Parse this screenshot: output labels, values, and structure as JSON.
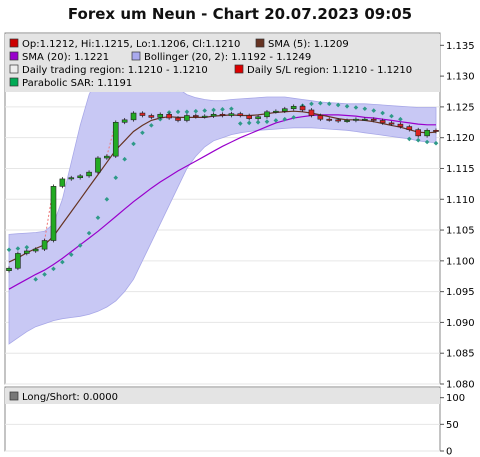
{
  "title": "Forex um Neun - Chart 20.07.2023 09:05",
  "legend": {
    "ohlc": "Op:1.1212, Hi:1.1215, Lo:1.1206, Cl:1.1210",
    "sma5": "SMA (5): 1.1209",
    "sma20": "SMA (20): 1.1221",
    "bollinger": "Bollinger (20, 2): 1.1192 - 1.1249",
    "daily_region": "Daily trading region: 1.1210 - 1.1210",
    "daily_sl": "Daily S/L region: 1.1210 - 1.1210",
    "psar": "Parabolic SAR: 1.1191"
  },
  "lower_panel": {
    "legend": "Long/Short: 0.0000",
    "ticks": [
      "100",
      "50",
      "0"
    ]
  },
  "colors": {
    "ohlc_swatch": "#cc0000",
    "sma5": "#663322",
    "sma20": "#9900cc",
    "bollinger_fill": "#c8c8f4",
    "bollinger_swatch": "#aaaaee",
    "daily_region": "#eeeeee",
    "daily_sl": "#dd0000",
    "psar": "#00aa55",
    "psar_dot": "#2e9a88",
    "up_candle": "#22aa22",
    "down_candle": "#dd2222"
  },
  "chart_data": {
    "type": "candlestick",
    "title": "Forex um Neun - Chart 20.07.2023 09:05",
    "ylim": [
      1.08,
      1.137
    ],
    "yticks": [
      "1.080",
      "1.085",
      "1.090",
      "1.095",
      "1.100",
      "1.105",
      "1.110",
      "1.115",
      "1.120",
      "1.125",
      "1.130",
      "1.135"
    ],
    "close": [
      1.0988,
      1.1012,
      1.1016,
      1.1019,
      1.1033,
      1.1121,
      1.1133,
      1.1135,
      1.1138,
      1.1144,
      1.1167,
      1.117,
      1.1225,
      1.1229,
      1.124,
      1.1236,
      1.1233,
      1.1238,
      1.1232,
      1.1228,
      1.1236,
      1.1234,
      1.1235,
      1.1238,
      1.1236,
      1.1239,
      1.1236,
      1.1231,
      1.1234,
      1.1242,
      1.1243,
      1.1247,
      1.1251,
      1.1245,
      1.1236,
      1.123,
      1.1229,
      1.1227,
      1.1228,
      1.123,
      1.123,
      1.1228,
      1.1224,
      1.1222,
      1.1218,
      1.1213,
      1.1203,
      1.1212,
      1.121
    ],
    "sma5": [
      1.0998,
      1.1005,
      1.1013,
      1.102,
      1.1026,
      1.104,
      1.106,
      1.108,
      1.11,
      1.112,
      1.114,
      1.116,
      1.118,
      1.1195,
      1.121,
      1.122,
      1.1228,
      1.1232,
      1.1234,
      1.1233,
      1.1233,
      1.1233,
      1.1233,
      1.1235,
      1.1236,
      1.1237,
      1.1236,
      1.1236,
      1.1237,
      1.1239,
      1.1241,
      1.1242,
      1.1243,
      1.1242,
      1.124,
      1.1237,
      1.1234,
      1.1231,
      1.1229,
      1.1229,
      1.1228,
      1.1226,
      1.1223,
      1.122,
      1.1217,
      1.1213,
      1.1209,
      1.1208,
      1.1209
    ],
    "sma20": [
      1.0954,
      1.0962,
      1.097,
      1.0978,
      1.0985,
      1.0994,
      1.1004,
      1.1015,
      1.1026,
      1.1037,
      1.1048,
      1.106,
      1.1072,
      1.1084,
      1.1096,
      1.1107,
      1.1118,
      1.1128,
      1.1137,
      1.1146,
      1.1154,
      1.1162,
      1.117,
      1.1178,
      1.1186,
      1.1193,
      1.12,
      1.1206,
      1.1212,
      1.1218,
      1.1224,
      1.1228,
      1.1232,
      1.1234,
      1.1236,
      1.1237,
      1.1237,
      1.1237,
      1.1236,
      1.1235,
      1.1233,
      1.1232,
      1.123,
      1.1228,
      1.1226,
      1.1224,
      1.1222,
      1.1221,
      1.1221
    ],
    "boll_upper": [
      1.1043,
      1.1044,
      1.1045,
      1.1046,
      1.1048,
      1.106,
      1.11,
      1.116,
      1.122,
      1.127,
      1.13,
      1.1315,
      1.132,
      1.1322,
      1.1322,
      1.132,
      1.1318,
      1.1312,
      1.13,
      1.128,
      1.127,
      1.1265,
      1.1262,
      1.126,
      1.126,
      1.1262,
      1.1263,
      1.1264,
      1.1265,
      1.1266,
      1.1266,
      1.1266,
      1.1264,
      1.1262,
      1.126,
      1.1258,
      1.1257,
      1.1256,
      1.1255,
      1.1255,
      1.1255,
      1.1254,
      1.1253,
      1.1252,
      1.1251,
      1.125,
      1.1249,
      1.1249,
      1.1249
    ],
    "boll_lower": [
      1.0865,
      1.0875,
      1.0885,
      1.0893,
      1.0898,
      1.0903,
      1.0906,
      1.0908,
      1.091,
      1.0913,
      1.0918,
      1.0925,
      1.0935,
      1.095,
      1.097,
      1.1,
      1.103,
      1.106,
      1.109,
      1.112,
      1.115,
      1.117,
      1.1185,
      1.1195,
      1.12,
      1.1205,
      1.1208,
      1.121,
      1.1212,
      1.1213,
      1.1214,
      1.1215,
      1.1216,
      1.1216,
      1.1216,
      1.1215,
      1.1214,
      1.1213,
      1.1212,
      1.121,
      1.1208,
      1.1206,
      1.1204,
      1.1202,
      1.12,
      1.1198,
      1.1195,
      1.1193,
      1.1192
    ],
    "psar": [
      1.1018,
      1.102,
      1.1022,
      1.097,
      1.0978,
      1.0987,
      1.0998,
      1.101,
      1.1025,
      1.1045,
      1.107,
      1.11,
      1.1135,
      1.1165,
      1.119,
      1.1208,
      1.122,
      1.123,
      1.1241,
      1.1242,
      1.1242,
      1.1243,
      1.1244,
      1.1245,
      1.1246,
      1.1247,
      1.1223,
      1.1224,
      1.1225,
      1.1226,
      1.1228,
      1.123,
      1.1233,
      1.1252,
      1.1255,
      1.1256,
      1.1255,
      1.1253,
      1.1251,
      1.1249,
      1.1247,
      1.1244,
      1.124,
      1.1235,
      1.123,
      1.1198,
      1.1196,
      1.1193,
      1.1191
    ],
    "lower_ylim": [
      0,
      120
    ]
  }
}
